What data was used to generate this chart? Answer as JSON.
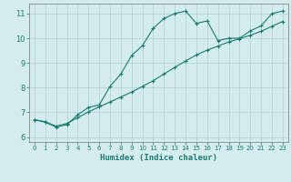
{
  "title": "",
  "xlabel": "Humidex (Indice chaleur)",
  "bg_color": "#d4ecee",
  "grid_color": "#b8d8db",
  "line_color": "#1a7a6e",
  "spine_color": "#888888",
  "xlim": [
    -0.5,
    23.5
  ],
  "ylim": [
    5.8,
    11.4
  ],
  "yticks": [
    6,
    7,
    8,
    9,
    10,
    11
  ],
  "xticks": [
    0,
    1,
    2,
    3,
    4,
    5,
    6,
    7,
    8,
    9,
    10,
    11,
    12,
    13,
    14,
    15,
    16,
    17,
    18,
    19,
    20,
    21,
    22,
    23
  ],
  "series1_x": [
    0,
    1,
    2,
    3,
    4,
    5,
    6,
    7,
    8,
    9,
    10,
    11,
    12,
    13,
    14,
    15,
    16,
    17,
    18,
    19,
    20,
    21,
    22,
    23
  ],
  "series1_y": [
    6.7,
    6.6,
    6.4,
    6.5,
    6.9,
    7.2,
    7.3,
    8.05,
    8.55,
    9.3,
    9.7,
    10.4,
    10.8,
    11.0,
    11.1,
    10.6,
    10.7,
    9.9,
    10.0,
    10.0,
    10.3,
    10.5,
    11.0,
    11.1
  ],
  "series2_x": [
    0,
    1,
    2,
    3,
    4,
    5,
    6,
    7,
    8,
    9,
    10,
    11,
    12,
    13,
    14,
    15,
    16,
    17,
    18,
    19,
    20,
    21,
    22,
    23
  ],
  "series2_y": [
    6.7,
    6.62,
    6.44,
    6.55,
    6.78,
    7.02,
    7.22,
    7.42,
    7.62,
    7.82,
    8.05,
    8.28,
    8.55,
    8.82,
    9.08,
    9.32,
    9.52,
    9.68,
    9.85,
    9.98,
    10.12,
    10.28,
    10.48,
    10.68
  ]
}
